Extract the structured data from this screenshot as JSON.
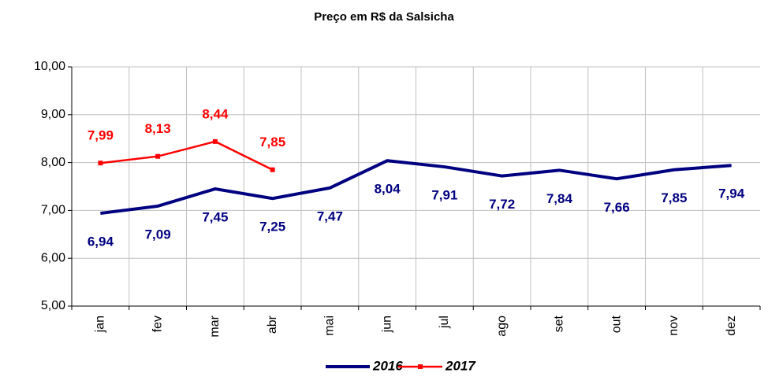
{
  "chart_data": {
    "type": "line",
    "title": "Preço em R$ da Salsicha",
    "categories": [
      "jan",
      "fev",
      "mar",
      "abr",
      "mai",
      "jun",
      "jul",
      "ago",
      "set",
      "out",
      "nov",
      "dez"
    ],
    "series": [
      {
        "name": "2016",
        "color": "#000080",
        "values": [
          6.94,
          7.09,
          7.45,
          7.25,
          7.47,
          8.04,
          7.91,
          7.72,
          7.84,
          7.66,
          7.85,
          7.94
        ],
        "value_labels": [
          "6,94",
          "7,09",
          "7,45",
          "7,25",
          "7,47",
          "8,04",
          "7,91",
          "7,72",
          "7,84",
          "7,66",
          "7,85",
          "7,94"
        ]
      },
      {
        "name": "2017",
        "color": "#ff0000",
        "values": [
          7.99,
          8.13,
          8.44,
          7.85,
          null,
          null,
          null,
          null,
          null,
          null,
          null,
          null
        ],
        "value_labels": [
          "7,99",
          "8,13",
          "8,44",
          "7,85",
          null,
          null,
          null,
          null,
          null,
          null,
          null,
          null
        ]
      }
    ],
    "ylim": [
      5,
      10
    ],
    "yticks": [
      {
        "value": 5,
        "label": "5,00"
      },
      {
        "value": 6,
        "label": "6,00"
      },
      {
        "value": 7,
        "label": "7,00"
      },
      {
        "value": 8,
        "label": "8,00"
      },
      {
        "value": 9,
        "label": "9,00"
      },
      {
        "value": 10,
        "label": "10,00"
      }
    ],
    "grid": true,
    "legend": "bottom"
  }
}
